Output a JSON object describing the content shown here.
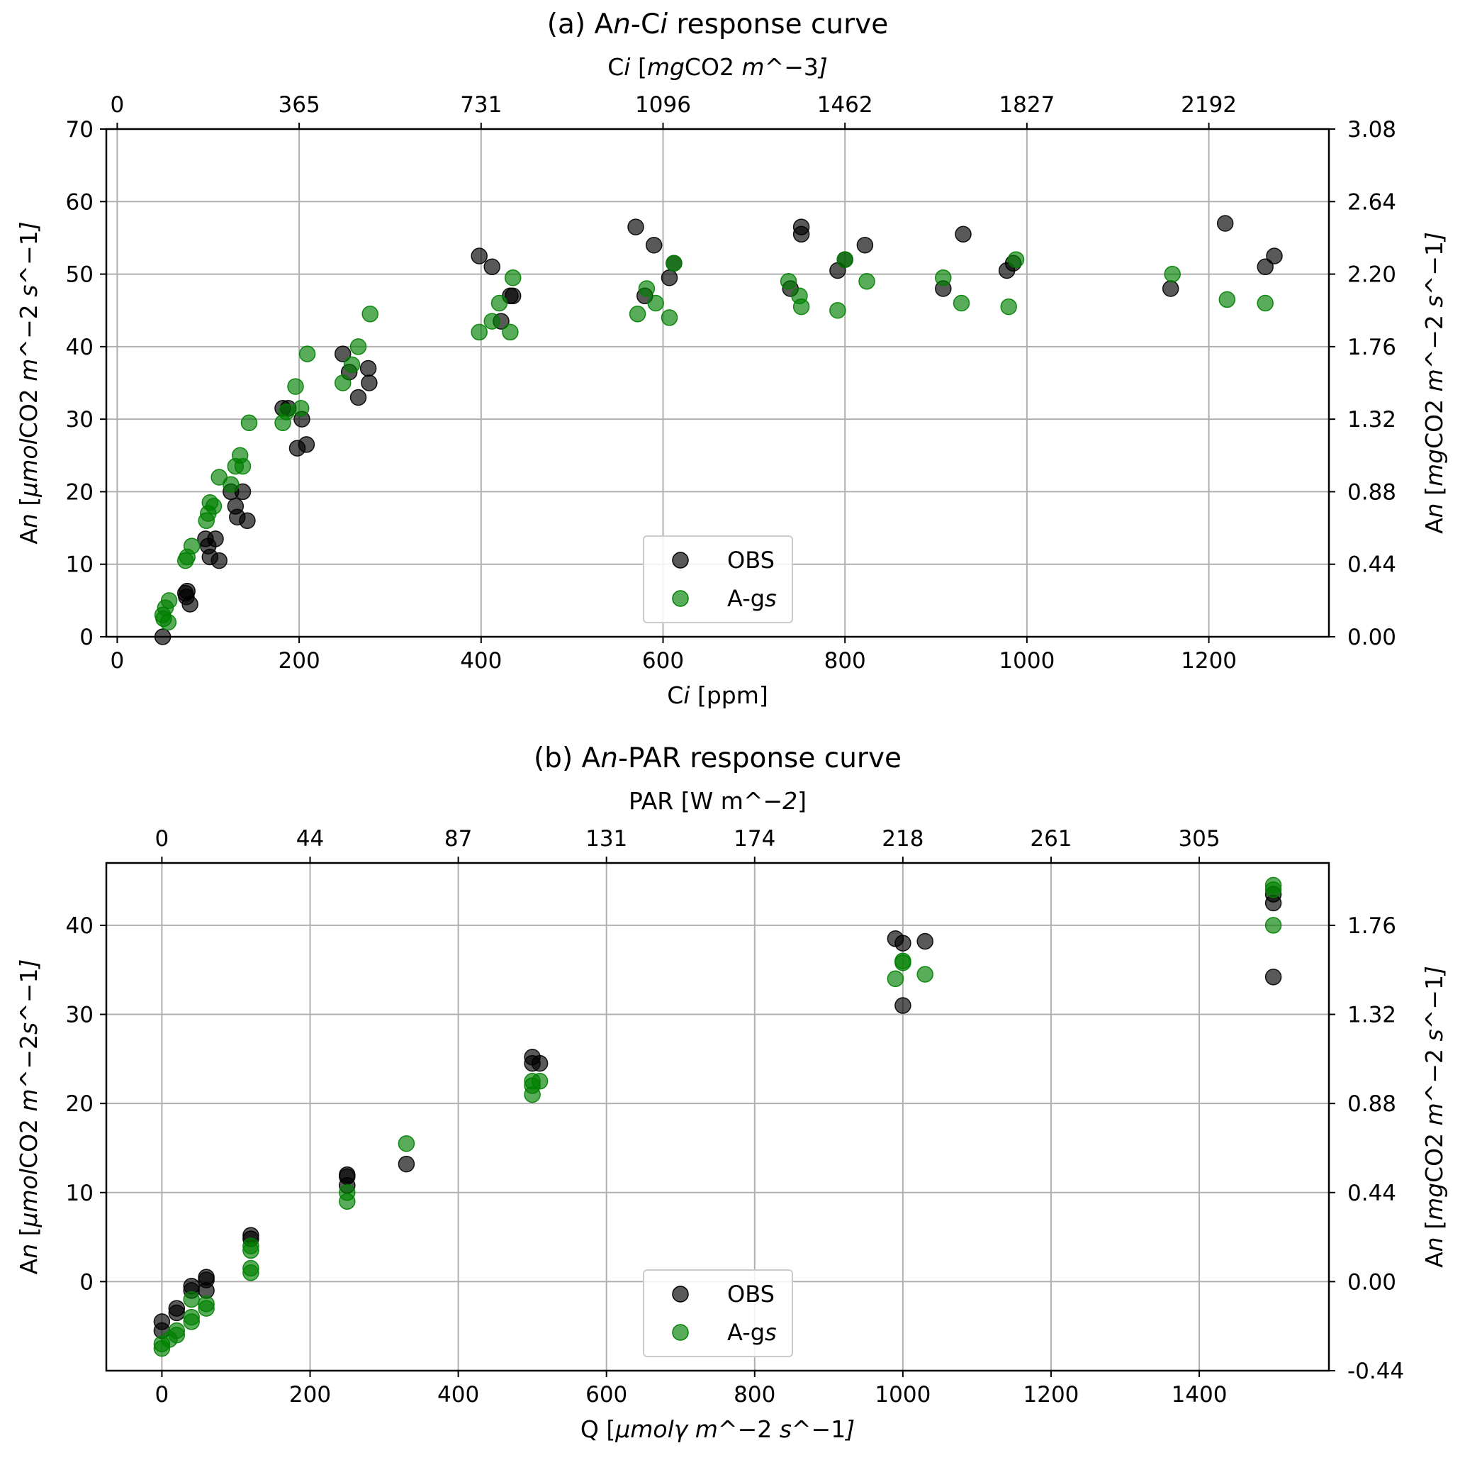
{
  "chart_data": [
    {
      "type": "scatter",
      "title": "(a) A$n$-C$i$ response curve",
      "xlabel": "C$i$ [ppm]",
      "ylabel": "A$n$ [$μmol$CO2$ m$^−2$ s$^−1$]",
      "top_xlabel": "C$i$ [$mg$CO2$ m$^−3$]",
      "right_ylabel": "A$n$ [$mg$CO2$ m$^−2$ s$^−1$]",
      "xlim": [
        -12,
        1332
      ],
      "ylim": [
        0,
        70
      ],
      "grid": true,
      "x_ticks": [
        0,
        200,
        400,
        600,
        800,
        1000,
        1200
      ],
      "x_tick_labels": [
        "0",
        "200",
        "400",
        "600",
        "800",
        "1000",
        "1200"
      ],
      "y_ticks": [
        0,
        10,
        20,
        30,
        40,
        50,
        60,
        70
      ],
      "y_tick_labels": [
        "0",
        "10",
        "20",
        "30",
        "40",
        "50",
        "60",
        "70"
      ],
      "top_x_ticks": [
        0,
        200,
        400,
        600,
        800,
        1000,
        1200
      ],
      "top_x_tick_labels": [
        "0",
        "365",
        "731",
        "1096",
        "1462",
        "1827",
        "2192"
      ],
      "right_y_ticks": [
        0,
        10,
        20,
        30,
        40,
        50,
        60,
        70
      ],
      "right_y_tick_labels": [
        "0.00",
        "0.44",
        "0.88",
        "1.32",
        "1.76",
        "2.20",
        "2.64",
        "3.08"
      ],
      "legend": {
        "placement": "lower-center",
        "entries": [
          "OBS",
          "A-g$s$"
        ]
      },
      "series": [
        {
          "name": "OBS",
          "color": "#000000",
          "opacity": 0.65,
          "points": [
            [
              50,
              0
            ],
            [
              75,
              6
            ],
            [
              76,
              5.5
            ],
            [
              77,
              6.3
            ],
            [
              80,
              4.5
            ],
            [
              97,
              13.5
            ],
            [
              100,
              12.5
            ],
            [
              102,
              11
            ],
            [
              108,
              13.5
            ],
            [
              112,
              10.5
            ],
            [
              125,
              20
            ],
            [
              130,
              18
            ],
            [
              132,
              16.5
            ],
            [
              138,
              20
            ],
            [
              143,
              16
            ],
            [
              182,
              31.5
            ],
            [
              188,
              31.5
            ],
            [
              198,
              26
            ],
            [
              203,
              30
            ],
            [
              208,
              26.5
            ],
            [
              248,
              39
            ],
            [
              255,
              36.5
            ],
            [
              265,
              33
            ],
            [
              276,
              37
            ],
            [
              277,
              35
            ],
            [
              398,
              52.5
            ],
            [
              412,
              51
            ],
            [
              422,
              43.5
            ],
            [
              432,
              47
            ],
            [
              435,
              47
            ],
            [
              570,
              56.5
            ],
            [
              580,
              47
            ],
            [
              590,
              54
            ],
            [
              607,
              49.5
            ],
            [
              612,
              51.5
            ],
            [
              740,
              48
            ],
            [
              752,
              56.5
            ],
            [
              752,
              55.5
            ],
            [
              792,
              50.5
            ],
            [
              800,
              52
            ],
            [
              822,
              54
            ],
            [
              908,
              48
            ],
            [
              930,
              55.5
            ],
            [
              978,
              50.5
            ],
            [
              985,
              51.5
            ],
            [
              1158,
              48
            ],
            [
              1218,
              57
            ],
            [
              1262,
              51
            ],
            [
              1272,
              52.5
            ]
          ]
        },
        {
          "name": "A-g$s$",
          "color": "#008000",
          "opacity": 0.65,
          "points": [
            [
              50,
              3
            ],
            [
              51,
              2.5
            ],
            [
              53,
              4
            ],
            [
              56,
              2
            ],
            [
              57,
              5
            ],
            [
              75,
              10.5
            ],
            [
              77,
              11
            ],
            [
              82,
              12.5
            ],
            [
              98,
              16
            ],
            [
              100,
              17
            ],
            [
              102,
              18.5
            ],
            [
              106,
              18
            ],
            [
              112,
              22
            ],
            [
              125,
              21
            ],
            [
              130,
              23.5
            ],
            [
              135,
              25
            ],
            [
              138,
              23.5
            ],
            [
              145,
              29.5
            ],
            [
              182,
              29.5
            ],
            [
              186,
              31
            ],
            [
              196,
              34.5
            ],
            [
              202,
              31.5
            ],
            [
              209,
              39
            ],
            [
              248,
              35
            ],
            [
              258,
              37.5
            ],
            [
              265,
              40
            ],
            [
              278,
              44.5
            ],
            [
              398,
              42
            ],
            [
              412,
              43.5
            ],
            [
              420,
              46
            ],
            [
              432,
              42
            ],
            [
              435,
              49.5
            ],
            [
              572,
              44.5
            ],
            [
              582,
              48
            ],
            [
              592,
              46
            ],
            [
              607,
              44
            ],
            [
              612,
              51.5
            ],
            [
              738,
              49
            ],
            [
              750,
              47
            ],
            [
              752,
              45.5
            ],
            [
              792,
              45
            ],
            [
              800,
              52
            ],
            [
              824,
              49
            ],
            [
              908,
              49.5
            ],
            [
              928,
              46
            ],
            [
              980,
              45.5
            ],
            [
              988,
              52
            ],
            [
              1160,
              50
            ],
            [
              1220,
              46.5
            ],
            [
              1262,
              46
            ]
          ]
        }
      ]
    },
    {
      "type": "scatter",
      "title": "(b) A$n$-PAR response curve",
      "xlabel": "Q [$μmolγ m$^−2$ s$^−1$]",
      "ylabel": "A$n$ [$μmol$CO2$ m$^−2$s$^−1$]",
      "top_xlabel": "PAR [W m$^−2$]",
      "right_ylabel": "A$n$ [$mg$CO2$ m$^−2$ s$^−1$]",
      "xlim": [
        -75,
        1575
      ],
      "ylim": [
        -10,
        47
      ],
      "grid": true,
      "x_ticks": [
        0,
        200,
        400,
        600,
        800,
        1000,
        1200,
        1400
      ],
      "x_tick_labels": [
        "0",
        "200",
        "400",
        "600",
        "800",
        "1000",
        "1200",
        "1400"
      ],
      "y_ticks": [
        0,
        10,
        20,
        30,
        40
      ],
      "y_tick_labels": [
        "0",
        "10",
        "20",
        "30",
        "40"
      ],
      "top_x_ticks": [
        0,
        200,
        400,
        600,
        800,
        1000,
        1200,
        1400
      ],
      "top_x_tick_labels": [
        "0",
        "44",
        "87",
        "131",
        "174",
        "218",
        "261",
        "305"
      ],
      "right_y_ticks": [
        -10,
        0,
        10,
        20,
        30,
        40
      ],
      "right_y_tick_labels": [
        "-0.44",
        "0.00",
        "0.44",
        "0.88",
        "1.32",
        "1.76"
      ],
      "legend": {
        "placement": "lower-center",
        "entries": [
          "OBS",
          "A-g$s$"
        ]
      },
      "series": [
        {
          "name": "OBS",
          "color": "#000000",
          "opacity": 0.65,
          "points": [
            [
              0,
              -4.5
            ],
            [
              0,
              -5.5
            ],
            [
              20,
              -3
            ],
            [
              20,
              -3.5
            ],
            [
              40,
              -1
            ],
            [
              40,
              -0.5
            ],
            [
              60,
              0.5
            ],
            [
              60,
              -1
            ],
            [
              60,
              0.2
            ],
            [
              120,
              5.2
            ],
            [
              120,
              4.8
            ],
            [
              250,
              12
            ],
            [
              250,
              11.8
            ],
            [
              250,
              10.8
            ],
            [
              330,
              13.2
            ],
            [
              500,
              25.2
            ],
            [
              500,
              24.5
            ],
            [
              510,
              24.5
            ],
            [
              990,
              38.5
            ],
            [
              1000,
              38
            ],
            [
              1000,
              31
            ],
            [
              1030,
              38.2
            ],
            [
              1500,
              43.5
            ],
            [
              1500,
              42.5
            ],
            [
              1500,
              34.2
            ]
          ]
        },
        {
          "name": "A-g$s$",
          "color": "#008000",
          "opacity": 0.65,
          "points": [
            [
              0,
              -7
            ],
            [
              0,
              -7.5
            ],
            [
              10,
              -6.5
            ],
            [
              20,
              -5.5
            ],
            [
              20,
              -6
            ],
            [
              40,
              -4
            ],
            [
              40,
              -4.5
            ],
            [
              40,
              -2
            ],
            [
              60,
              -2.5
            ],
            [
              60,
              -3
            ],
            [
              120,
              4
            ],
            [
              120,
              3.5
            ],
            [
              120,
              1.5
            ],
            [
              120,
              1
            ],
            [
              250,
              10
            ],
            [
              250,
              9
            ],
            [
              330,
              15.5
            ],
            [
              500,
              22
            ],
            [
              500,
              21
            ],
            [
              500,
              22.5
            ],
            [
              510,
              22.5
            ],
            [
              990,
              34
            ],
            [
              1000,
              35.8
            ],
            [
              1000,
              36
            ],
            [
              1030,
              34.5
            ],
            [
              1500,
              44.5
            ],
            [
              1500,
              44
            ],
            [
              1500,
              40
            ]
          ]
        }
      ]
    }
  ]
}
